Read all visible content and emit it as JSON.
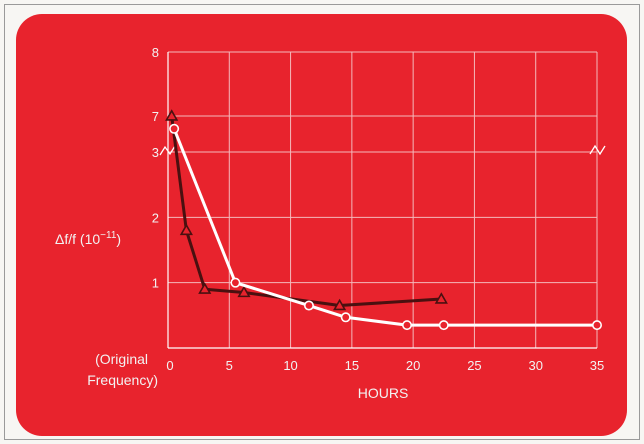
{
  "chart_data": {
    "type": "line",
    "xlabel": "HOURS",
    "ylabel": {
      "prefix": "Δf/f (10",
      "exponent": "−11",
      "suffix": ")"
    },
    "origin_label": [
      "(Original",
      "Frequency)"
    ],
    "xlim": [
      0,
      35
    ],
    "x_ticks": [
      0,
      5,
      10,
      15,
      20,
      25,
      30,
      35
    ],
    "y_ticks": [
      1,
      2,
      3,
      7,
      8
    ],
    "y_axis_break": {
      "between": [
        3,
        7
      ]
    },
    "grid": true,
    "series": [
      {
        "marker": "triangle",
        "color": "#4a1010",
        "points": [
          [
            0.3,
            7.0
          ],
          [
            1.5,
            1.8
          ],
          [
            3.0,
            0.9
          ],
          [
            6.2,
            0.85
          ],
          [
            14.0,
            0.65
          ],
          [
            22.3,
            0.75
          ]
        ]
      },
      {
        "marker": "circle",
        "color": "#ffffff",
        "points": [
          [
            0.5,
            6.8
          ],
          [
            5.5,
            1.0
          ],
          [
            11.5,
            0.65
          ],
          [
            14.5,
            0.47
          ],
          [
            19.5,
            0.35
          ],
          [
            22.5,
            0.35
          ],
          [
            35.0,
            0.35
          ]
        ]
      }
    ]
  },
  "colors": {
    "panel": "#e8232d",
    "grid": "#f4b8bb",
    "axis": "#ffffff"
  }
}
